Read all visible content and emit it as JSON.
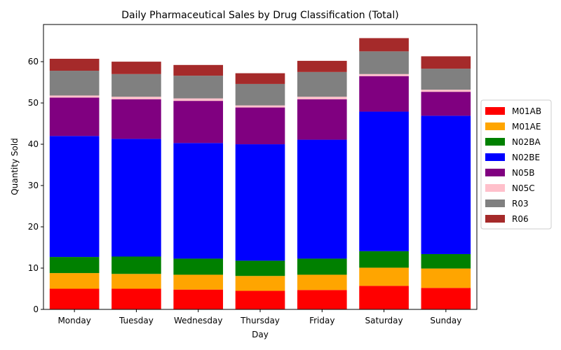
{
  "chart_data": {
    "type": "bar",
    "stacked": true,
    "title": "Daily Pharmaceutical Sales by Drug Classification (Total)",
    "xlabel": "Day",
    "ylabel": "Quantity Sold",
    "ylim": [
      0,
      69
    ],
    "yticks": [
      0,
      10,
      20,
      30,
      40,
      50,
      60
    ],
    "grid": false,
    "legend_position": "right, outside plot",
    "categories": [
      "Monday",
      "Tuesday",
      "Wednesday",
      "Thursday",
      "Friday",
      "Saturday",
      "Sunday"
    ],
    "series": [
      {
        "name": "M01AB",
        "color": "#ff0000",
        "values": [
          5.0,
          5.0,
          4.8,
          4.5,
          4.7,
          5.7,
          5.2
        ]
      },
      {
        "name": "M01AE",
        "color": "#ffa500",
        "values": [
          3.8,
          3.6,
          3.6,
          3.6,
          3.7,
          4.4,
          4.7
        ]
      },
      {
        "name": "N02BA",
        "color": "#008000",
        "values": [
          3.9,
          4.2,
          3.9,
          3.7,
          3.9,
          4.0,
          3.5
        ]
      },
      {
        "name": "N02BE",
        "color": "#0000ff",
        "values": [
          29.3,
          28.5,
          28.0,
          28.2,
          28.8,
          33.8,
          33.5
        ]
      },
      {
        "name": "N05B",
        "color": "#800080",
        "values": [
          9.3,
          9.6,
          10.2,
          8.9,
          9.8,
          8.6,
          5.8
        ]
      },
      {
        "name": "N05C",
        "color": "#ffc0cb",
        "values": [
          0.5,
          0.6,
          0.6,
          0.5,
          0.6,
          0.5,
          0.5
        ]
      },
      {
        "name": "R03",
        "color": "#808080",
        "values": [
          6.0,
          5.5,
          5.5,
          5.2,
          6.0,
          5.5,
          5.1
        ]
      },
      {
        "name": "R06",
        "color": "#a52a2a",
        "values": [
          2.9,
          3.0,
          2.6,
          2.6,
          2.7,
          3.2,
          3.0
        ]
      }
    ]
  }
}
